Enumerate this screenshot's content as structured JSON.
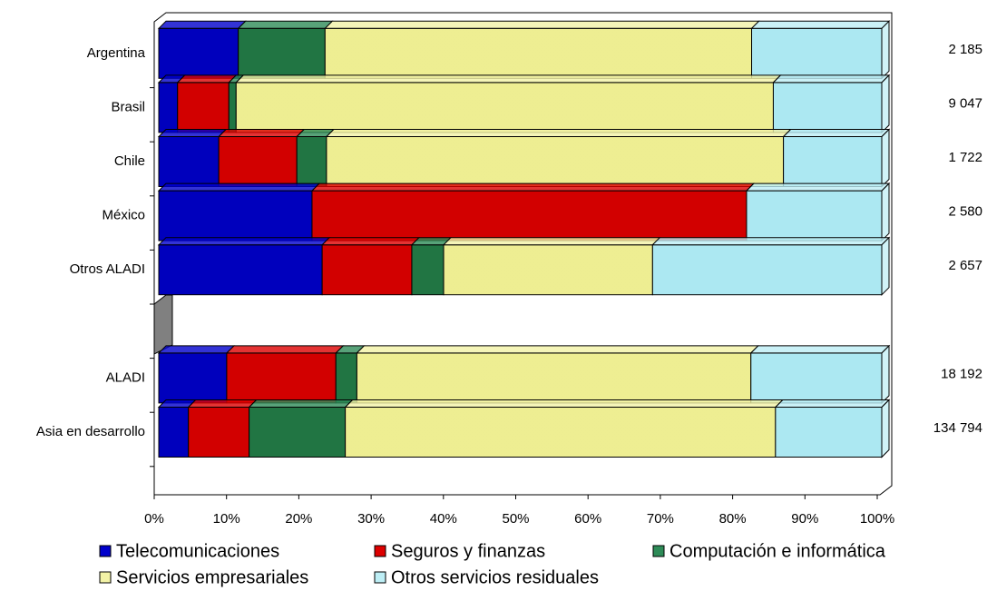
{
  "chart_data": {
    "type": "bar",
    "orientation": "horizontal",
    "stacked": "percent",
    "categories": [
      "Argentina",
      "Brasil",
      "Chile",
      "México",
      "Otros ALADI",
      null,
      "ALADI",
      "Asia en desarrollo"
    ],
    "series": [
      {
        "name": "Telecomunicaciones",
        "color": "#0000cc",
        "values": [
          11,
          2.6,
          8.3,
          21.2,
          22.6,
          null,
          9.4,
          4.1
        ]
      },
      {
        "name": "Seguros y finanzas",
        "color": "#dd0000",
        "values": [
          0,
          7.1,
          10.8,
          60.1,
          12.4,
          null,
          15.1,
          8.4
        ]
      },
      {
        "name": "Computación e informática",
        "color": "#2e8b57",
        "values": [
          12,
          1,
          4.1,
          0,
          4.4,
          null,
          2.9,
          13.3
        ]
      },
      {
        "name": "Servicios empresariales",
        "color": "#f2f2a6",
        "values": [
          59,
          74.3,
          63.2,
          0,
          28.9,
          null,
          54.5,
          59.5
        ]
      },
      {
        "name": "Otros servicios residuales",
        "color": "#bdeef5",
        "values": [
          18,
          15,
          13.6,
          18.7,
          31.7,
          null,
          18.1,
          14.7
        ]
      }
    ],
    "totals": [
      "2 185",
      "9 047",
      "1 722",
      "2 580",
      "2 657",
      null,
      "18 192",
      "134 794"
    ],
    "xlim": [
      0,
      100
    ],
    "xticks": [
      {
        "value": 0,
        "label": "0%"
      },
      {
        "value": 10,
        "label": "10%"
      },
      {
        "value": 20,
        "label": "20%"
      },
      {
        "value": 30,
        "label": "30%"
      },
      {
        "value": 40,
        "label": "40%"
      },
      {
        "value": 50,
        "label": "50%"
      },
      {
        "value": 60,
        "label": "60%"
      },
      {
        "value": 70,
        "label": "70%"
      },
      {
        "value": 80,
        "label": "80%"
      },
      {
        "value": 90,
        "label": "90%"
      },
      {
        "value": 100,
        "label": "100%"
      }
    ],
    "legend": "bottom"
  }
}
